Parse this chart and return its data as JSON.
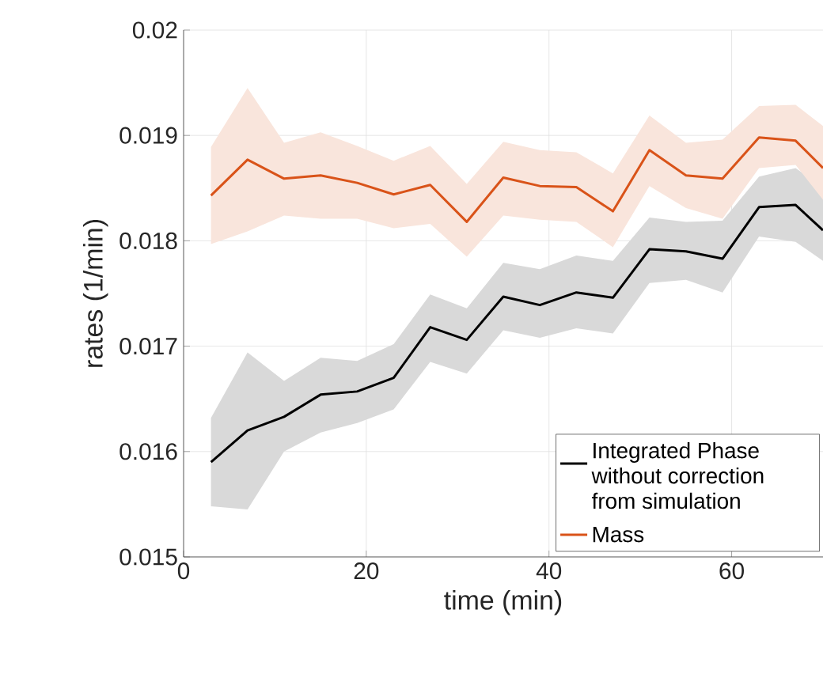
{
  "chart_data": {
    "type": "line",
    "xlabel": "time (min)",
    "ylabel": "rates (1/min)",
    "x": [
      3,
      7,
      11,
      15,
      19,
      23,
      27,
      31,
      35,
      39,
      43,
      47,
      51,
      55,
      59,
      63,
      67,
      70
    ],
    "xlim": [
      0,
      70
    ],
    "xticks": [
      0,
      20,
      40,
      60
    ],
    "ylim": [
      0.015,
      0.02
    ],
    "yticks": [
      0.015,
      0.016,
      0.017,
      0.018,
      0.019,
      0.02
    ],
    "grid": true,
    "legend": "bottom right",
    "line_style": "solid",
    "marker": "none",
    "series": [
      {
        "name": "Integrated Phase without correction from simulation",
        "color": "#000000",
        "values": [
          0.0159,
          0.0162,
          0.01633,
          0.01654,
          0.01657,
          0.0167,
          0.01718,
          0.01706,
          0.01747,
          0.01739,
          0.01751,
          0.01746,
          0.01792,
          0.0179,
          0.01783,
          0.01832,
          0.01834,
          0.0181
        ],
        "upper": [
          0.01632,
          0.01694,
          0.01667,
          0.01689,
          0.01686,
          0.01702,
          0.01749,
          0.01736,
          0.01779,
          0.01773,
          0.01786,
          0.01781,
          0.01822,
          0.01818,
          0.01819,
          0.01861,
          0.01869,
          0.01851
        ],
        "lower": [
          0.01548,
          0.01545,
          0.016,
          0.01618,
          0.01627,
          0.0164,
          0.01685,
          0.01674,
          0.01715,
          0.01708,
          0.01717,
          0.01712,
          0.0176,
          0.01763,
          0.01751,
          0.01804,
          0.01799,
          0.01781
        ]
      },
      {
        "name": "Mass",
        "color": "#d95319",
        "values": [
          0.01843,
          0.01877,
          0.01859,
          0.01862,
          0.01855,
          0.01844,
          0.01853,
          0.01818,
          0.0186,
          0.01852,
          0.01851,
          0.01828,
          0.01886,
          0.01862,
          0.01859,
          0.01898,
          0.01895,
          0.01869
        ],
        "upper": [
          0.01889,
          0.01945,
          0.01893,
          0.01903,
          0.0189,
          0.01876,
          0.0189,
          0.01854,
          0.01894,
          0.01886,
          0.01884,
          0.01864,
          0.01919,
          0.01893,
          0.01896,
          0.01928,
          0.01929,
          0.01909
        ],
        "lower": [
          0.01797,
          0.01809,
          0.01824,
          0.01821,
          0.01821,
          0.01812,
          0.01816,
          0.01785,
          0.01824,
          0.0182,
          0.01818,
          0.01794,
          0.01852,
          0.01831,
          0.01821,
          0.01869,
          0.01872,
          0.01839
        ]
      }
    ]
  }
}
